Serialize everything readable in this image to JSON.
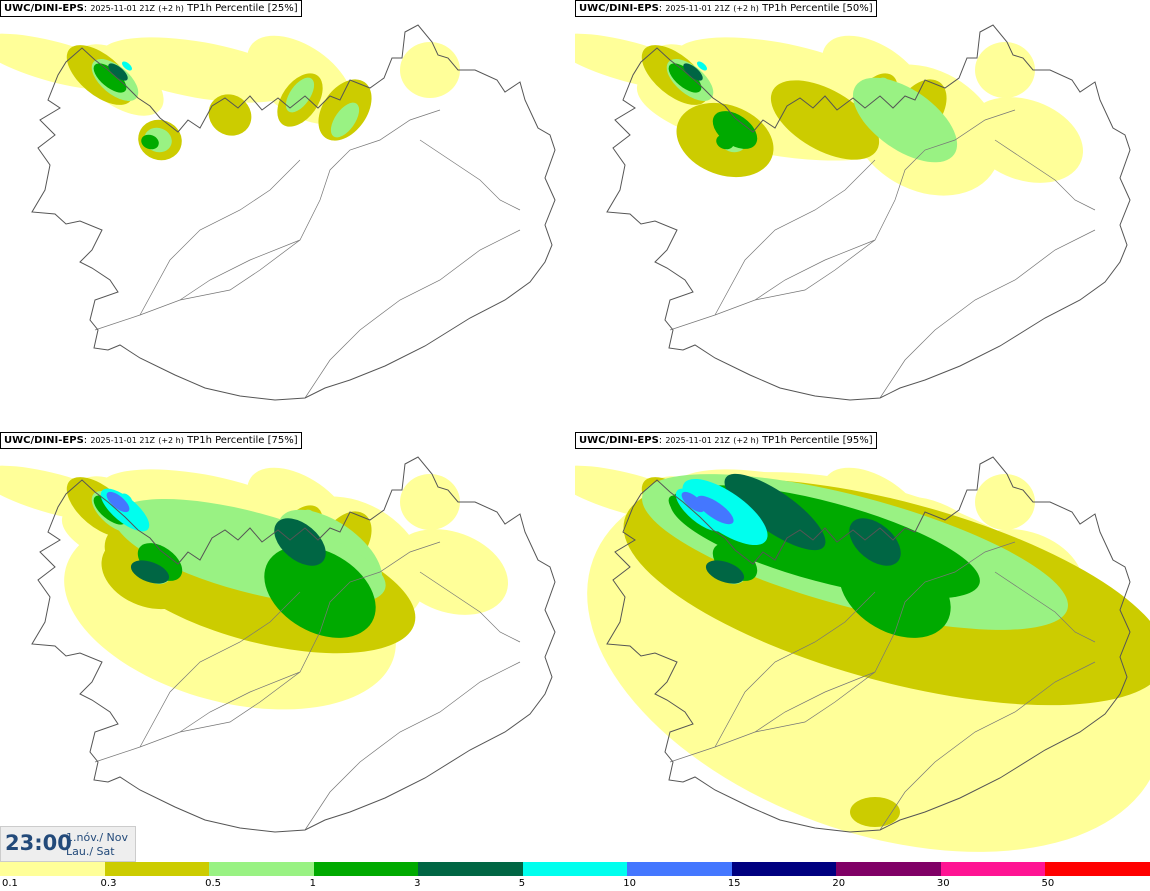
{
  "panels": [
    {
      "source": "UWC/DINI-EPS",
      "run": "2025-11-01 21Z",
      "lead": "(+2 h)",
      "field": "TP1h Percentile [25%]",
      "level": 0
    },
    {
      "source": "UWC/DINI-EPS",
      "run": "2025-11-01 21Z",
      "lead": "(+2 h)",
      "field": "TP1h Percentile [50%]",
      "level": 1
    },
    {
      "source": "UWC/DINI-EPS",
      "run": "2025-11-01 21Z",
      "lead": "(+2 h)",
      "field": "TP1h Percentile [75%]",
      "level": 2
    },
    {
      "source": "UWC/DINI-EPS",
      "run": "2025-11-01 21Z",
      "lead": "(+2 h)",
      "field": "TP1h Percentile [95%]",
      "level": 3
    }
  ],
  "valid_time": {
    "time": "23:00",
    "date_line1": "1.nóv./ Nov",
    "date_line2": "Lau./ Sat"
  },
  "legend": {
    "ticks": [
      "0.1",
      "0.3",
      "0.5",
      "1",
      "3",
      "5",
      "10",
      "15",
      "20",
      "30",
      "50"
    ],
    "colors": [
      "#ffff99",
      "#cccc00",
      "#99f283",
      "#00aa00",
      "#006644",
      "#00ffee",
      "#4477ff",
      "#000080",
      "#800066",
      "#ff1493",
      "#ff0000"
    ]
  },
  "colors": {
    "land_outline": "#555555",
    "roads": "#777777",
    "background": "#ffffff",
    "label_text": "#234a7a"
  }
}
